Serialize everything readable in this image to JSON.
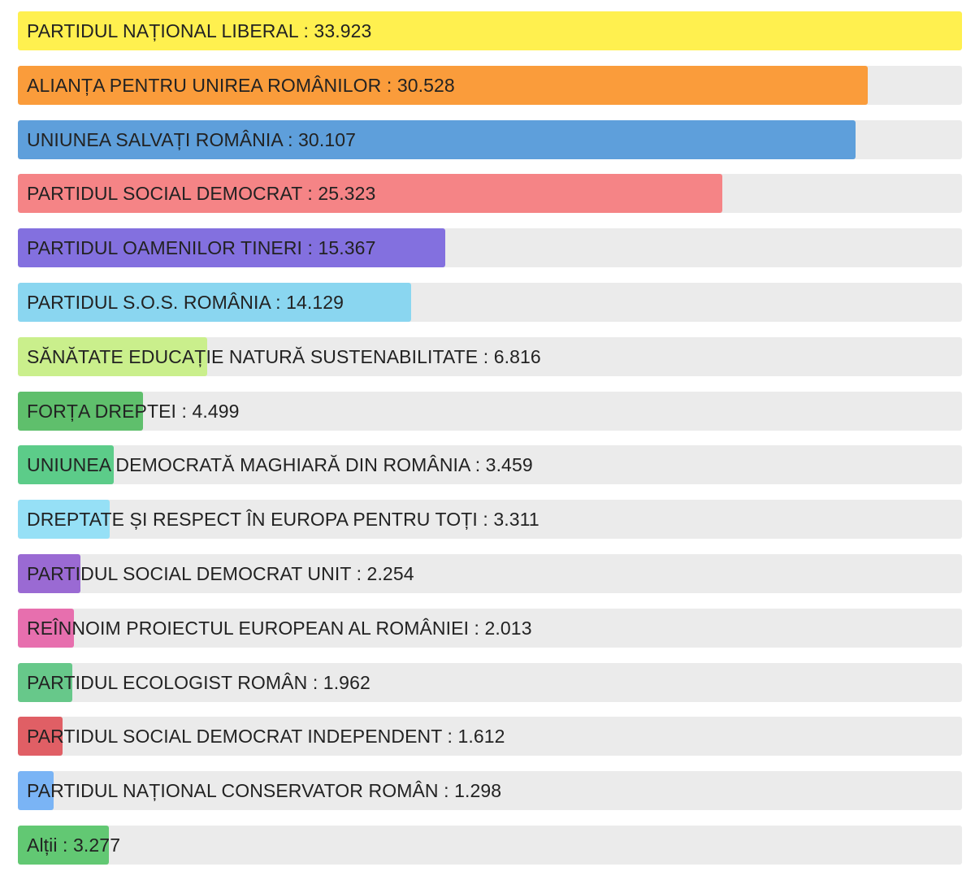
{
  "chart_data": {
    "type": "bar",
    "orientation": "horizontal",
    "title": "",
    "xlabel": "",
    "ylabel": "",
    "xlim": [
      0,
      33923
    ],
    "separator": " : ",
    "bars": [
      {
        "name": "PARTIDUL NAȚIONAL LIBERAL",
        "value": 33923,
        "display_value": "33.923",
        "color": "#fff04f"
      },
      {
        "name": "ALIANȚA PENTRU UNIREA ROMÂNILOR",
        "value": 30528,
        "display_value": "30.528",
        "color": "#fa9c3b"
      },
      {
        "name": "UNIUNEA SALVAȚI ROMÂNIA",
        "value": 30107,
        "display_value": "30.107",
        "color": "#5e9fdb"
      },
      {
        "name": "PARTIDUL SOCIAL DEMOCRAT",
        "value": 25323,
        "display_value": "25.323",
        "color": "#f58486"
      },
      {
        "name": "PARTIDUL OAMENILOR TINERI",
        "value": 15367,
        "display_value": "15.367",
        "color": "#8370df"
      },
      {
        "name": "PARTIDUL S.O.S. ROMÂNIA",
        "value": 14129,
        "display_value": "14.129",
        "color": "#8ad6f0"
      },
      {
        "name": "SĂNĂTATE EDUCAȚIE NATURĂ SUSTENABILITATE",
        "value": 6816,
        "display_value": "6.816",
        "color": "#caef8c"
      },
      {
        "name": "FORȚA DREPTEI",
        "value": 4499,
        "display_value": "4.499",
        "color": "#5fbf6c"
      },
      {
        "name": "UNIUNEA DEMOCRATĂ MAGHIARĂ DIN ROMÂNIA",
        "value": 3459,
        "display_value": "3.459",
        "color": "#5ccc89"
      },
      {
        "name": "DREPTATE ȘI RESPECT ÎN EUROPA PENTRU TOȚI",
        "value": 3311,
        "display_value": "3.311",
        "color": "#96e0f6"
      },
      {
        "name": "PARTIDUL SOCIAL DEMOCRAT UNIT",
        "value": 2254,
        "display_value": "2.254",
        "color": "#9a6ad3"
      },
      {
        "name": "REÎNNOIM PROIECTUL EUROPEAN AL ROMÂNIEI",
        "value": 2013,
        "display_value": "2.013",
        "color": "#e76fae"
      },
      {
        "name": "PARTIDUL ECOLOGIST ROMÂN",
        "value": 1962,
        "display_value": "1.962",
        "color": "#67c88a"
      },
      {
        "name": "PARTIDUL SOCIAL DEMOCRAT INDEPENDENT",
        "value": 1612,
        "display_value": "1.612",
        "color": "#e05f65"
      },
      {
        "name": "PARTIDUL NAȚIONAL CONSERVATOR ROMÂN",
        "value": 1298,
        "display_value": "1.298",
        "color": "#7ab4f5"
      },
      {
        "name": "Alții",
        "value": 3277,
        "display_value": "3.277",
        "color": "#62c873"
      }
    ]
  }
}
